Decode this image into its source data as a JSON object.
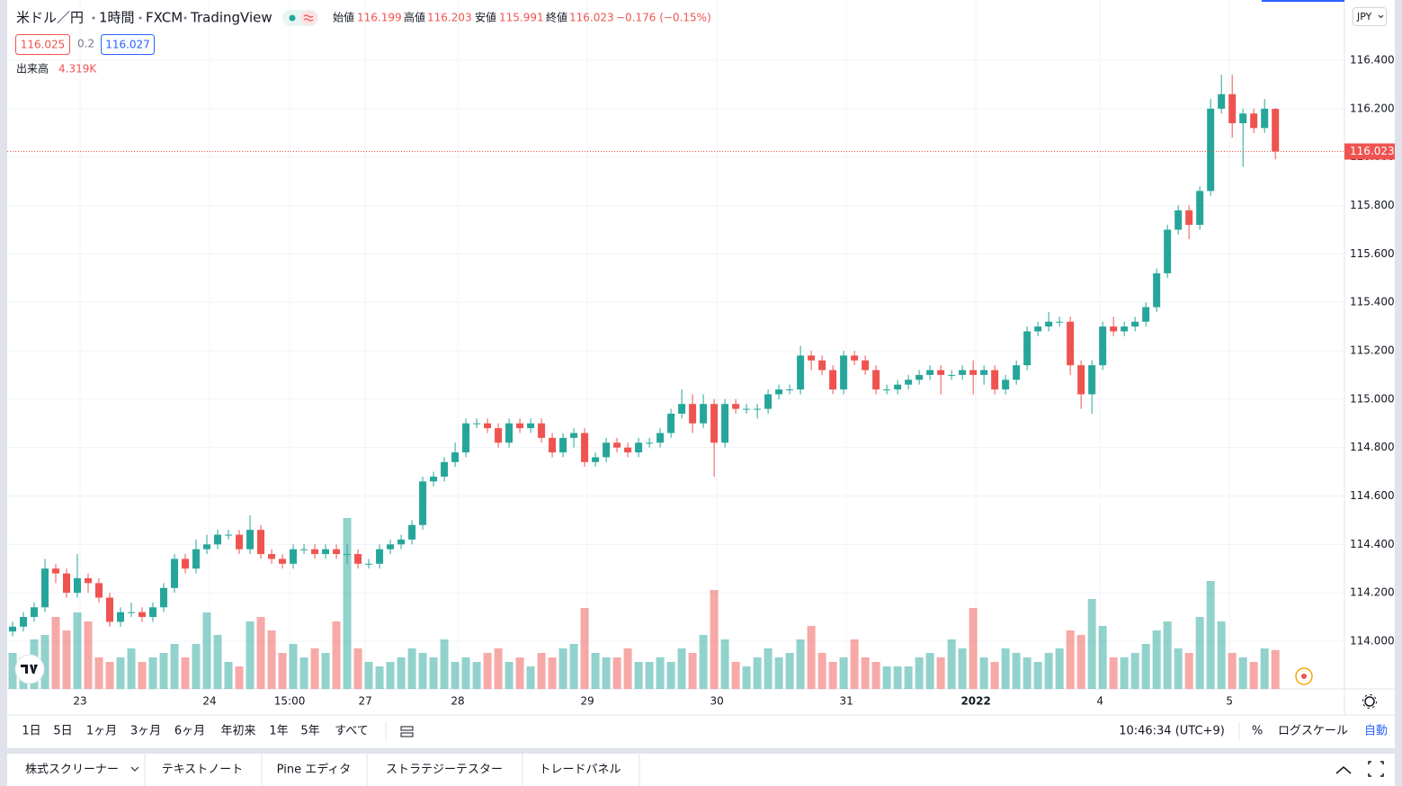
{
  "header": {
    "symbol": "米ドル／円",
    "interval": "1時間",
    "exchange": "FXCM",
    "source": "TradingView",
    "open_label": "始値",
    "open": "116.199",
    "high_label": "高値",
    "high": "116.203",
    "low_label": "安値",
    "low": "115.991",
    "close_label": "終値",
    "close": "116.023",
    "change": "−0.176 (−0.15%)"
  },
  "quote": {
    "bid": "116.025",
    "spread": "0.2",
    "ask": "116.027"
  },
  "volume_legend": {
    "label": "出来高",
    "value": "4.319K"
  },
  "currency": "JPY",
  "chart_data": {
    "type": "candlestick",
    "up_color": "#26a69a",
    "down_color": "#ef5350",
    "grid": true,
    "xlim": [
      -0.5,
      123.4
    ],
    "xticks": [
      {
        "value": 6.25,
        "label": "23"
      },
      {
        "value": 18.25,
        "label": "24"
      },
      {
        "value": 25.67,
        "label": "15:00"
      },
      {
        "value": 32.67,
        "label": "27"
      },
      {
        "value": 41.25,
        "label": "28"
      },
      {
        "value": 53.25,
        "label": "29"
      },
      {
        "value": 65.25,
        "label": "30"
      },
      {
        "value": 77.25,
        "label": "31"
      },
      {
        "value": 89.25,
        "label": "2022"
      },
      {
        "value": 100.75,
        "label": "4"
      },
      {
        "value": 112.75,
        "label": "5"
      }
    ],
    "ylim": [
      113.803,
      116.649
    ],
    "yticks": [
      {
        "value": 114,
        "label": "114.000"
      },
      {
        "value": 114.2,
        "label": "114.200"
      },
      {
        "value": 114.4,
        "label": "114.400"
      },
      {
        "value": 114.6,
        "label": "114.600"
      },
      {
        "value": 114.8,
        "label": "114.800"
      },
      {
        "value": 115,
        "label": "115.000"
      },
      {
        "value": 115.2,
        "label": "115.200"
      },
      {
        "value": 115.4,
        "label": "115.400"
      },
      {
        "value": 115.6,
        "label": "115.600"
      },
      {
        "value": 115.8,
        "label": "115.800"
      },
      {
        "value": 116,
        "label": "116.000"
      },
      {
        "value": 116.2,
        "label": "116.200"
      },
      {
        "value": 116.4,
        "label": "116.400"
      }
    ],
    "volume_lim": [
      0,
      20000
    ],
    "open": [
      114.04,
      114.06,
      114.1,
      114.14,
      114.3,
      114.28,
      114.2,
      114.26,
      114.24,
      114.18,
      114.08,
      114.12,
      114.12,
      114.1,
      114.14,
      114.22,
      114.34,
      114.3,
      114.38,
      114.4,
      114.44,
      114.44,
      114.38,
      114.46,
      114.36,
      114.34,
      114.32,
      114.38,
      114.38,
      114.36,
      114.38,
      114.36,
      114.36,
      114.32,
      114.32,
      114.38,
      114.4,
      114.42,
      114.48,
      114.66,
      114.68,
      114.74,
      114.78,
      114.9,
      114.9,
      114.88,
      114.82,
      114.9,
      114.88,
      114.9,
      114.84,
      114.78,
      114.84,
      114.86,
      114.74,
      114.76,
      114.82,
      114.8,
      114.78,
      114.82,
      114.82,
      114.86,
      114.94,
      114.98,
      114.9,
      114.98,
      114.82,
      114.98,
      114.96,
      114.96,
      114.96,
      115.02,
      115.04,
      115.04,
      115.18,
      115.16,
      115.12,
      115.04,
      115.18,
      115.16,
      115.12,
      115.04,
      115.04,
      115.06,
      115.08,
      115.1,
      115.12,
      115.1,
      115.1,
      115.12,
      115.1,
      115.12,
      115.04,
      115.08,
      115.14,
      115.28,
      115.3,
      115.32,
      115.32,
      115.14,
      115.02,
      115.14,
      115.3,
      115.28,
      115.3,
      115.32,
      115.38,
      115.52,
      115.7,
      115.78,
      115.72,
      115.86,
      116.2,
      116.26,
      116.14,
      116.18,
      116.12,
      116.199
    ],
    "high": [
      114.08,
      114.12,
      114.16,
      114.34,
      114.32,
      114.3,
      114.36,
      114.28,
      114.26,
      114.2,
      114.14,
      114.16,
      114.14,
      114.16,
      114.24,
      114.36,
      114.36,
      114.42,
      114.44,
      114.46,
      114.46,
      114.46,
      114.52,
      114.48,
      114.38,
      114.36,
      114.4,
      114.4,
      114.4,
      114.4,
      114.4,
      114.4,
      114.38,
      114.34,
      114.4,
      114.42,
      114.44,
      114.5,
      114.68,
      114.7,
      114.76,
      114.82,
      114.92,
      114.92,
      114.92,
      114.9,
      114.92,
      114.92,
      114.92,
      114.92,
      114.86,
      114.86,
      114.88,
      114.88,
      114.78,
      114.84,
      114.84,
      114.82,
      114.84,
      114.84,
      114.88,
      114.96,
      115.04,
      115.02,
      115.02,
      115.0,
      115.0,
      115.0,
      114.98,
      114.98,
      115.04,
      115.06,
      115.06,
      115.22,
      115.2,
      115.18,
      115.14,
      115.2,
      115.2,
      115.18,
      115.14,
      115.06,
      115.08,
      115.1,
      115.12,
      115.14,
      115.14,
      115.12,
      115.14,
      115.16,
      115.14,
      115.14,
      115.1,
      115.16,
      115.3,
      115.32,
      115.36,
      115.34,
      115.34,
      115.16,
      115.16,
      115.32,
      115.34,
      115.32,
      115.34,
      115.4,
      115.54,
      115.72,
      115.8,
      115.8,
      115.88,
      116.24,
      116.34,
      116.34,
      116.2,
      116.2,
      116.24,
      116.203
    ],
    "low": [
      114.02,
      114.04,
      114.08,
      114.12,
      114.24,
      114.18,
      114.18,
      114.2,
      114.16,
      114.06,
      114.06,
      114.1,
      114.08,
      114.08,
      114.12,
      114.2,
      114.28,
      114.28,
      114.36,
      114.38,
      114.42,
      114.36,
      114.36,
      114.34,
      114.32,
      114.3,
      114.3,
      114.36,
      114.34,
      114.34,
      114.34,
      114.32,
      114.3,
      114.3,
      114.3,
      114.36,
      114.38,
      114.4,
      114.46,
      114.64,
      114.66,
      114.72,
      114.76,
      114.88,
      114.86,
      114.8,
      114.8,
      114.86,
      114.86,
      114.82,
      114.76,
      114.76,
      114.8,
      114.72,
      114.72,
      114.74,
      114.78,
      114.76,
      114.76,
      114.8,
      114.8,
      114.84,
      114.92,
      114.86,
      114.88,
      114.68,
      114.8,
      114.94,
      114.94,
      114.92,
      114.94,
      115.0,
      115.02,
      115.02,
      115.12,
      115.1,
      115.02,
      115.02,
      115.14,
      115.1,
      115.02,
      115.02,
      115.02,
      115.04,
      115.06,
      115.08,
      115.02,
      115.08,
      115.08,
      115.02,
      115.06,
      115.02,
      115.02,
      115.06,
      115.12,
      115.26,
      115.28,
      115.3,
      115.1,
      114.96,
      114.94,
      115.12,
      115.26,
      115.26,
      115.28,
      115.3,
      115.36,
      115.5,
      115.68,
      115.66,
      115.7,
      115.84,
      116.18,
      116.08,
      115.96,
      116.1,
      116.1,
      115.991
    ],
    "close": [
      114.06,
      114.1,
      114.14,
      114.3,
      114.28,
      114.2,
      114.26,
      114.24,
      114.18,
      114.08,
      114.12,
      114.12,
      114.1,
      114.14,
      114.22,
      114.34,
      114.3,
      114.38,
      114.4,
      114.44,
      114.44,
      114.38,
      114.46,
      114.36,
      114.34,
      114.32,
      114.38,
      114.38,
      114.36,
      114.38,
      114.36,
      114.36,
      114.32,
      114.32,
      114.38,
      114.4,
      114.42,
      114.48,
      114.66,
      114.68,
      114.74,
      114.78,
      114.9,
      114.9,
      114.88,
      114.82,
      114.9,
      114.88,
      114.9,
      114.84,
      114.78,
      114.84,
      114.86,
      114.74,
      114.76,
      114.82,
      114.8,
      114.78,
      114.82,
      114.82,
      114.86,
      114.94,
      114.98,
      114.9,
      114.98,
      114.82,
      114.98,
      114.96,
      114.96,
      114.96,
      115.02,
      115.04,
      115.04,
      115.18,
      115.16,
      115.12,
      115.04,
      115.18,
      115.16,
      115.12,
      115.04,
      115.04,
      115.06,
      115.08,
      115.1,
      115.12,
      115.1,
      115.1,
      115.12,
      115.1,
      115.12,
      115.04,
      115.08,
      115.14,
      115.28,
      115.3,
      115.32,
      115.32,
      115.14,
      115.02,
      115.14,
      115.3,
      115.28,
      115.3,
      115.32,
      115.38,
      115.52,
      115.7,
      115.78,
      115.72,
      115.86,
      116.2,
      116.26,
      116.14,
      116.18,
      116.12,
      116.2,
      116.023
    ],
    "volume": [
      4000,
      3500,
      5500,
      6000,
      8000,
      6500,
      8500,
      7500,
      3500,
      3000,
      3500,
      4500,
      3000,
      3500,
      4000,
      5000,
      3500,
      5000,
      8500,
      6000,
      3000,
      2500,
      7500,
      8000,
      6500,
      4000,
      5000,
      3500,
      4500,
      4000,
      7500,
      19000,
      4500,
      3000,
      2500,
      3000,
      3500,
      4500,
      4000,
      3500,
      5500,
      3000,
      3500,
      3000,
      4000,
      4500,
      3000,
      3500,
      2500,
      4000,
      3500,
      4500,
      5000,
      9000,
      4000,
      3500,
      3500,
      4500,
      3000,
      3000,
      3500,
      3000,
      4500,
      4000,
      6000,
      11000,
      5500,
      3000,
      2500,
      3500,
      4500,
      3500,
      4000,
      5500,
      7000,
      4000,
      3000,
      3500,
      5500,
      3500,
      3000,
      2500,
      2500,
      2500,
      3500,
      4000,
      3500,
      5500,
      4500,
      9000,
      3500,
      3000,
      4500,
      4000,
      3500,
      3000,
      4000,
      4500,
      6500,
      6000,
      10000,
      7000,
      3500,
      3500,
      4000,
      5000,
      6500,
      7500,
      4500,
      4000,
      8000,
      12000,
      7500,
      4000,
      3500,
      3000,
      4500,
      4319
    ]
  },
  "ranges": [
    "1日",
    "5日",
    "1ヶ月",
    "3ヶ月",
    "6ヶ月",
    "年初来",
    "1年",
    "5年",
    "すべて"
  ],
  "clock": "10:46:34 (UTC+9)",
  "scale_options": {
    "percent": "%",
    "log": "ログスケール",
    "auto": "自動"
  },
  "tabs": [
    "株式スクリーナー",
    "テキストノート",
    "Pine エディタ",
    "ストラテジーテスター",
    "トレードパネル"
  ]
}
